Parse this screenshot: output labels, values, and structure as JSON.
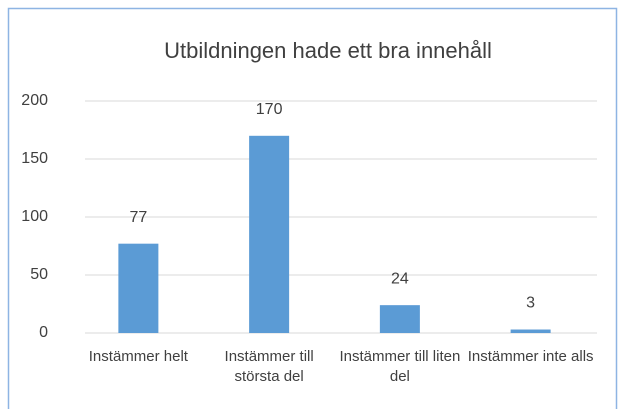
{
  "chart_data": {
    "type": "bar",
    "title": "Utbildningen hade ett bra innehåll",
    "categories": [
      "Instämmer helt",
      "Instämmer till största del",
      "Instämmer till liten del",
      "Instämmer inte alls"
    ],
    "values": [
      77,
      170,
      24,
      3
    ],
    "color": "#5b9bd5",
    "ylim": [
      0,
      200
    ],
    "yticks": [
      0,
      50,
      100,
      150,
      200
    ],
    "grid": true
  }
}
